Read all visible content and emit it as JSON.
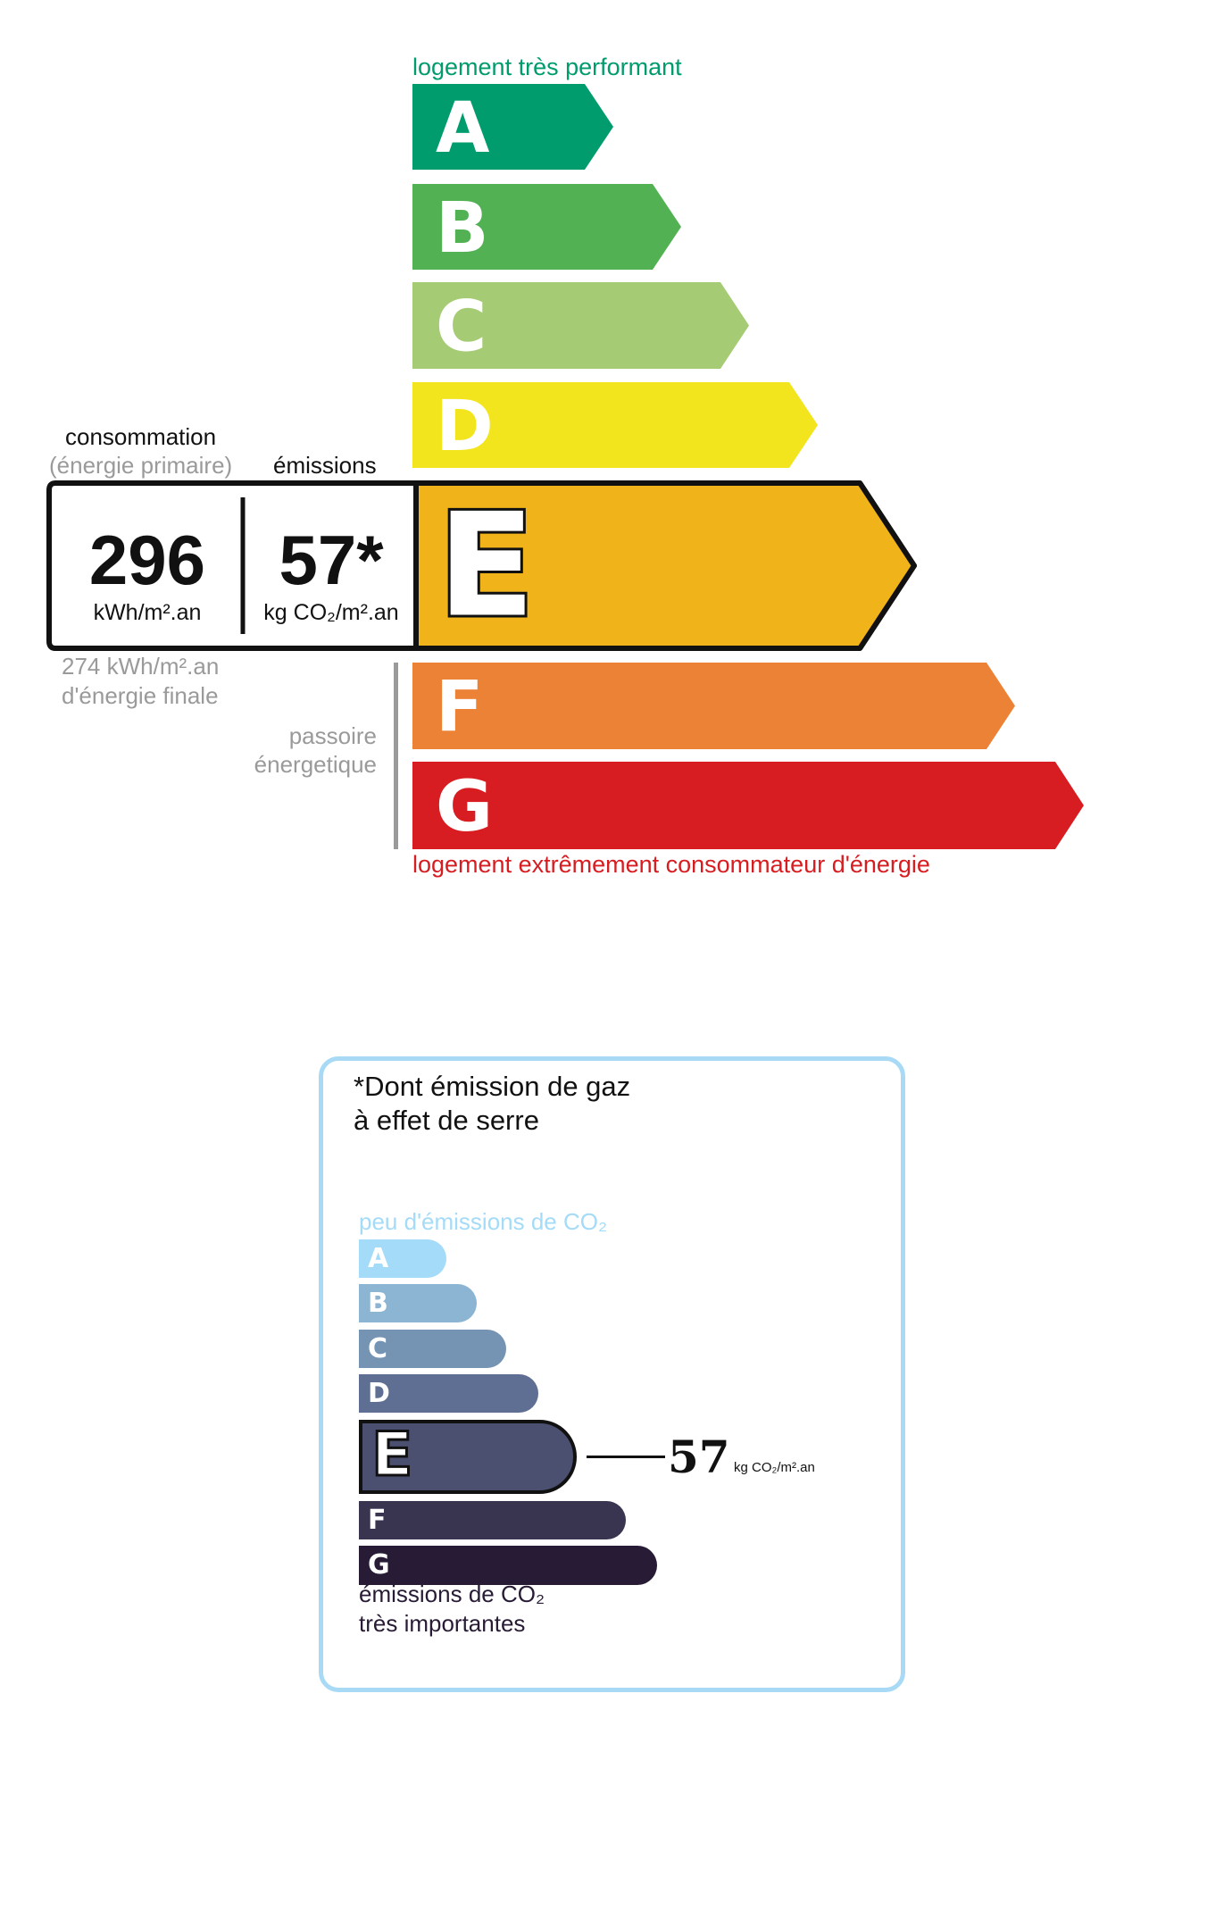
{
  "energy": {
    "top_label": "logement très performant",
    "bottom_label": "logement extrêmement consommateur d'énergie",
    "top_label_color": "#009c6d",
    "bottom_label_color": "#d71d21",
    "classes": [
      {
        "letter": "A",
        "color": "#009c6d"
      },
      {
        "letter": "B",
        "color": "#52b153"
      },
      {
        "letter": "C",
        "color": "#a5cc74"
      },
      {
        "letter": "D",
        "color": "#f2e51d"
      },
      {
        "letter": "E",
        "color": "#f0b41a"
      },
      {
        "letter": "F",
        "color": "#ec8235"
      },
      {
        "letter": "G",
        "color": "#d71d21"
      }
    ],
    "current_class": "E",
    "consumption_label": "consommation",
    "consumption_sublabel": "(énergie primaire)",
    "emissions_label": "émissions",
    "consumption_value": "296",
    "consumption_unit": "kWh/m².an",
    "emissions_value": "57*",
    "emissions_unit": "kg CO₂/m².an",
    "final_energy_line1": "274 kWh/m².an",
    "final_energy_line2": "d'énergie finale",
    "passoire_line1": "passoire",
    "passoire_line2": "énergetique"
  },
  "ges": {
    "title_line1": "*Dont émission de gaz",
    "title_line2": "à effet de serre",
    "top_label": "peu d'émissions de CO₂",
    "bottom_line1": "émissions de CO₂",
    "bottom_line2": "très importantes",
    "border_color": "#a8daf5",
    "classes": [
      {
        "letter": "A",
        "color": "#a4dbf8"
      },
      {
        "letter": "B",
        "color": "#8cb4d3"
      },
      {
        "letter": "C",
        "color": "#7593b3"
      },
      {
        "letter": "D",
        "color": "#5f6f93"
      },
      {
        "letter": "E",
        "color": "#4b5070"
      },
      {
        "letter": "F",
        "color": "#393551"
      },
      {
        "letter": "G",
        "color": "#281b35"
      }
    ],
    "current_class": "E",
    "value": "57",
    "unit": "kg CO₂/m².an"
  }
}
